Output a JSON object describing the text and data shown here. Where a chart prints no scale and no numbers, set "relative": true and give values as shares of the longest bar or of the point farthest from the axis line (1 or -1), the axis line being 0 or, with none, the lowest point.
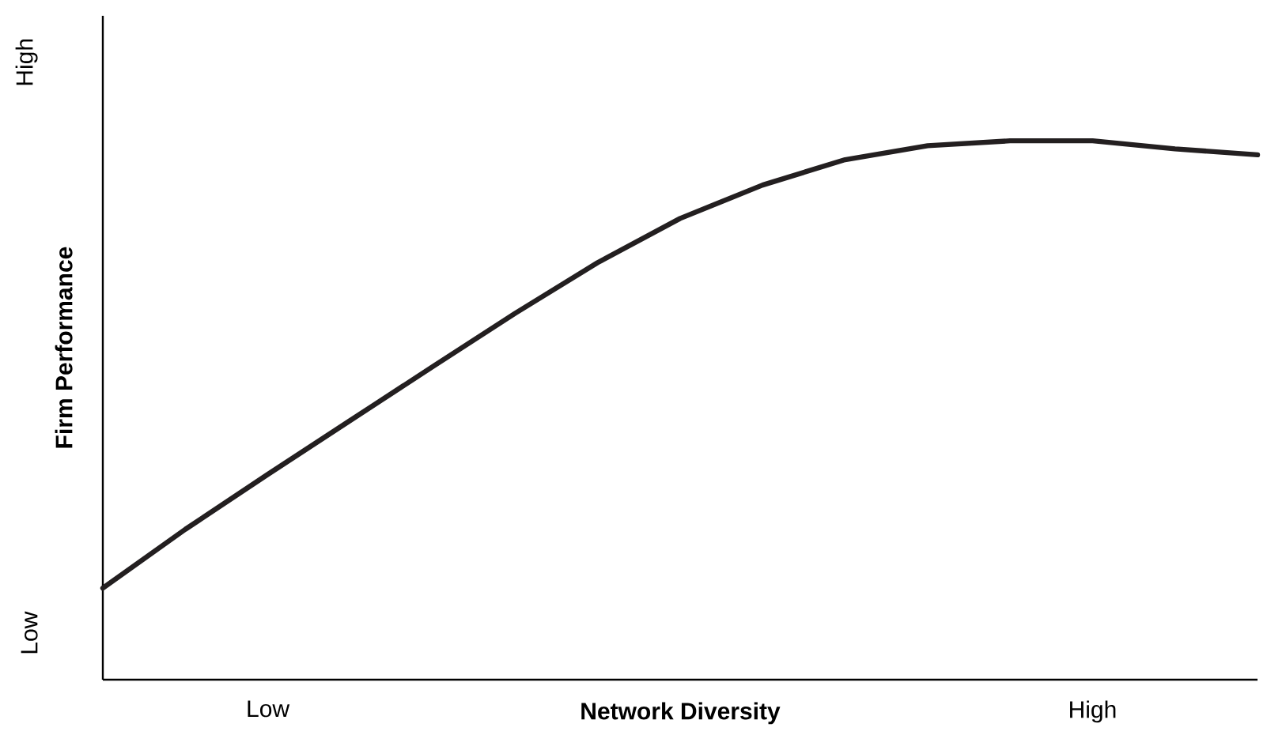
{
  "chart_data": {
    "type": "line",
    "relative": true,
    "xlabel": "Network Diversity",
    "ylabel": "Firm Performance",
    "categories": [
      null,
      null,
      "Low",
      null,
      null,
      null,
      null,
      null,
      null,
      null,
      null,
      null,
      "High",
      null,
      null
    ],
    "values": [
      0.17,
      0.279,
      0.381,
      0.481,
      0.581,
      0.68,
      0.774,
      0.856,
      0.918,
      0.965,
      0.991,
      1,
      1,
      0.985,
      0.974
    ],
    "color": "#231f20",
    "annotations": [
      "Low",
      "High"
    ]
  }
}
